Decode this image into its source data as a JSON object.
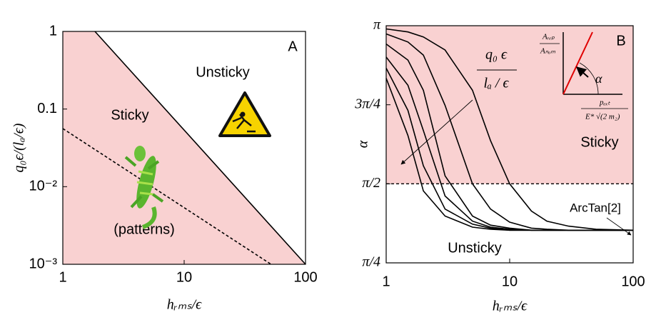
{
  "chart_data": [
    {
      "type": "line",
      "xlabel": "hᵣₘₛ/ϵ",
      "ylabel": "q₀ϵ/(lₐ/ϵ)",
      "xscale": "log",
      "yscale": "log",
      "xlim": [
        1,
        100
      ],
      "ylim": [
        0.001,
        1
      ],
      "xticks": [
        1,
        10,
        100
      ],
      "yticks": [
        {
          "value": 0.001,
          "label": "10⁻³"
        },
        {
          "value": 0.01,
          "label": "10⁻²"
        },
        0.1,
        1
      ],
      "labels": {
        "panel": "A",
        "upper": "Unsticky",
        "lower": "Sticky",
        "lower_note": "(patterns)"
      },
      "series": [
        {
          "color": "#000000",
          "style": "solid",
          "fill_below": "#f9d1d1",
          "x": [
            1.84,
            100
          ],
          "values": [
            1,
            0.001
          ]
        },
        {
          "color": "#000000",
          "style": "dashed",
          "x": [
            1,
            52
          ],
          "values": [
            0.056,
            0.001
          ]
        }
      ]
    },
    {
      "type": "line",
      "xlabel": "hᵣₘₛ/ϵ",
      "ylabel": "α",
      "xscale": "log",
      "xlim": [
        1,
        100
      ],
      "ylim": [
        0.7854,
        3.1416
      ],
      "xticks": [
        1,
        10,
        100
      ],
      "yticks": [
        {
          "value": 0.7854,
          "label": "π/4"
        },
        {
          "value": 1.5708,
          "label": "π/2"
        },
        {
          "value": 2.3562,
          "label": "3π/4"
        },
        {
          "value": 3.1416,
          "label": "π"
        }
      ],
      "hline": {
        "value": 1.5708,
        "style": "dashed",
        "fill_above": "#f9d1d1"
      },
      "labels": {
        "panel": "B",
        "upper": "Sticky",
        "lower": "Unsticky",
        "limit": "ArcTan[2]",
        "param_num": "q₀ ϵ",
        "param_den": "lₐ / ϵ",
        "inset_y_num": "Aᵣₑₚ",
        "inset_y_den": "Aₙₒₘ",
        "inset_angle": "α",
        "inset_x_num": "pₑₓₜ",
        "inset_x_den": "E* √(2 m₂)"
      },
      "x": [
        1,
        1.5,
        2,
        3,
        5,
        7,
        10,
        15,
        20,
        30,
        50,
        100
      ],
      "series": [
        {
          "color": "#000000",
          "values": [
            2.62,
            2.05,
            1.5,
            1.25,
            1.14,
            1.12,
            1.11,
            1.11,
            1.11,
            1.11,
            1.11,
            1.11
          ]
        },
        {
          "color": "#000000",
          "values": [
            2.72,
            2.3,
            1.75,
            1.32,
            1.17,
            1.13,
            1.11,
            1.11,
            1.11,
            1.11,
            1.11,
            1.11
          ]
        },
        {
          "color": "#000000",
          "values": [
            2.83,
            2.55,
            2.1,
            1.45,
            1.2,
            1.14,
            1.12,
            1.11,
            1.11,
            1.11,
            1.11,
            1.11
          ]
        },
        {
          "color": "#000000",
          "values": [
            2.96,
            2.8,
            2.5,
            1.65,
            1.25,
            1.16,
            1.13,
            1.11,
            1.11,
            1.11,
            1.11,
            1.11
          ]
        },
        {
          "color": "#000000",
          "values": [
            3.06,
            2.98,
            2.85,
            2.35,
            1.57,
            1.32,
            1.19,
            1.13,
            1.12,
            1.11,
            1.11,
            1.11
          ]
        },
        {
          "color": "#000000",
          "values": [
            3.11,
            3.08,
            3.03,
            2.9,
            2.5,
            2.0,
            1.57,
            1.3,
            1.2,
            1.15,
            1.12,
            1.11
          ]
        }
      ]
    }
  ]
}
